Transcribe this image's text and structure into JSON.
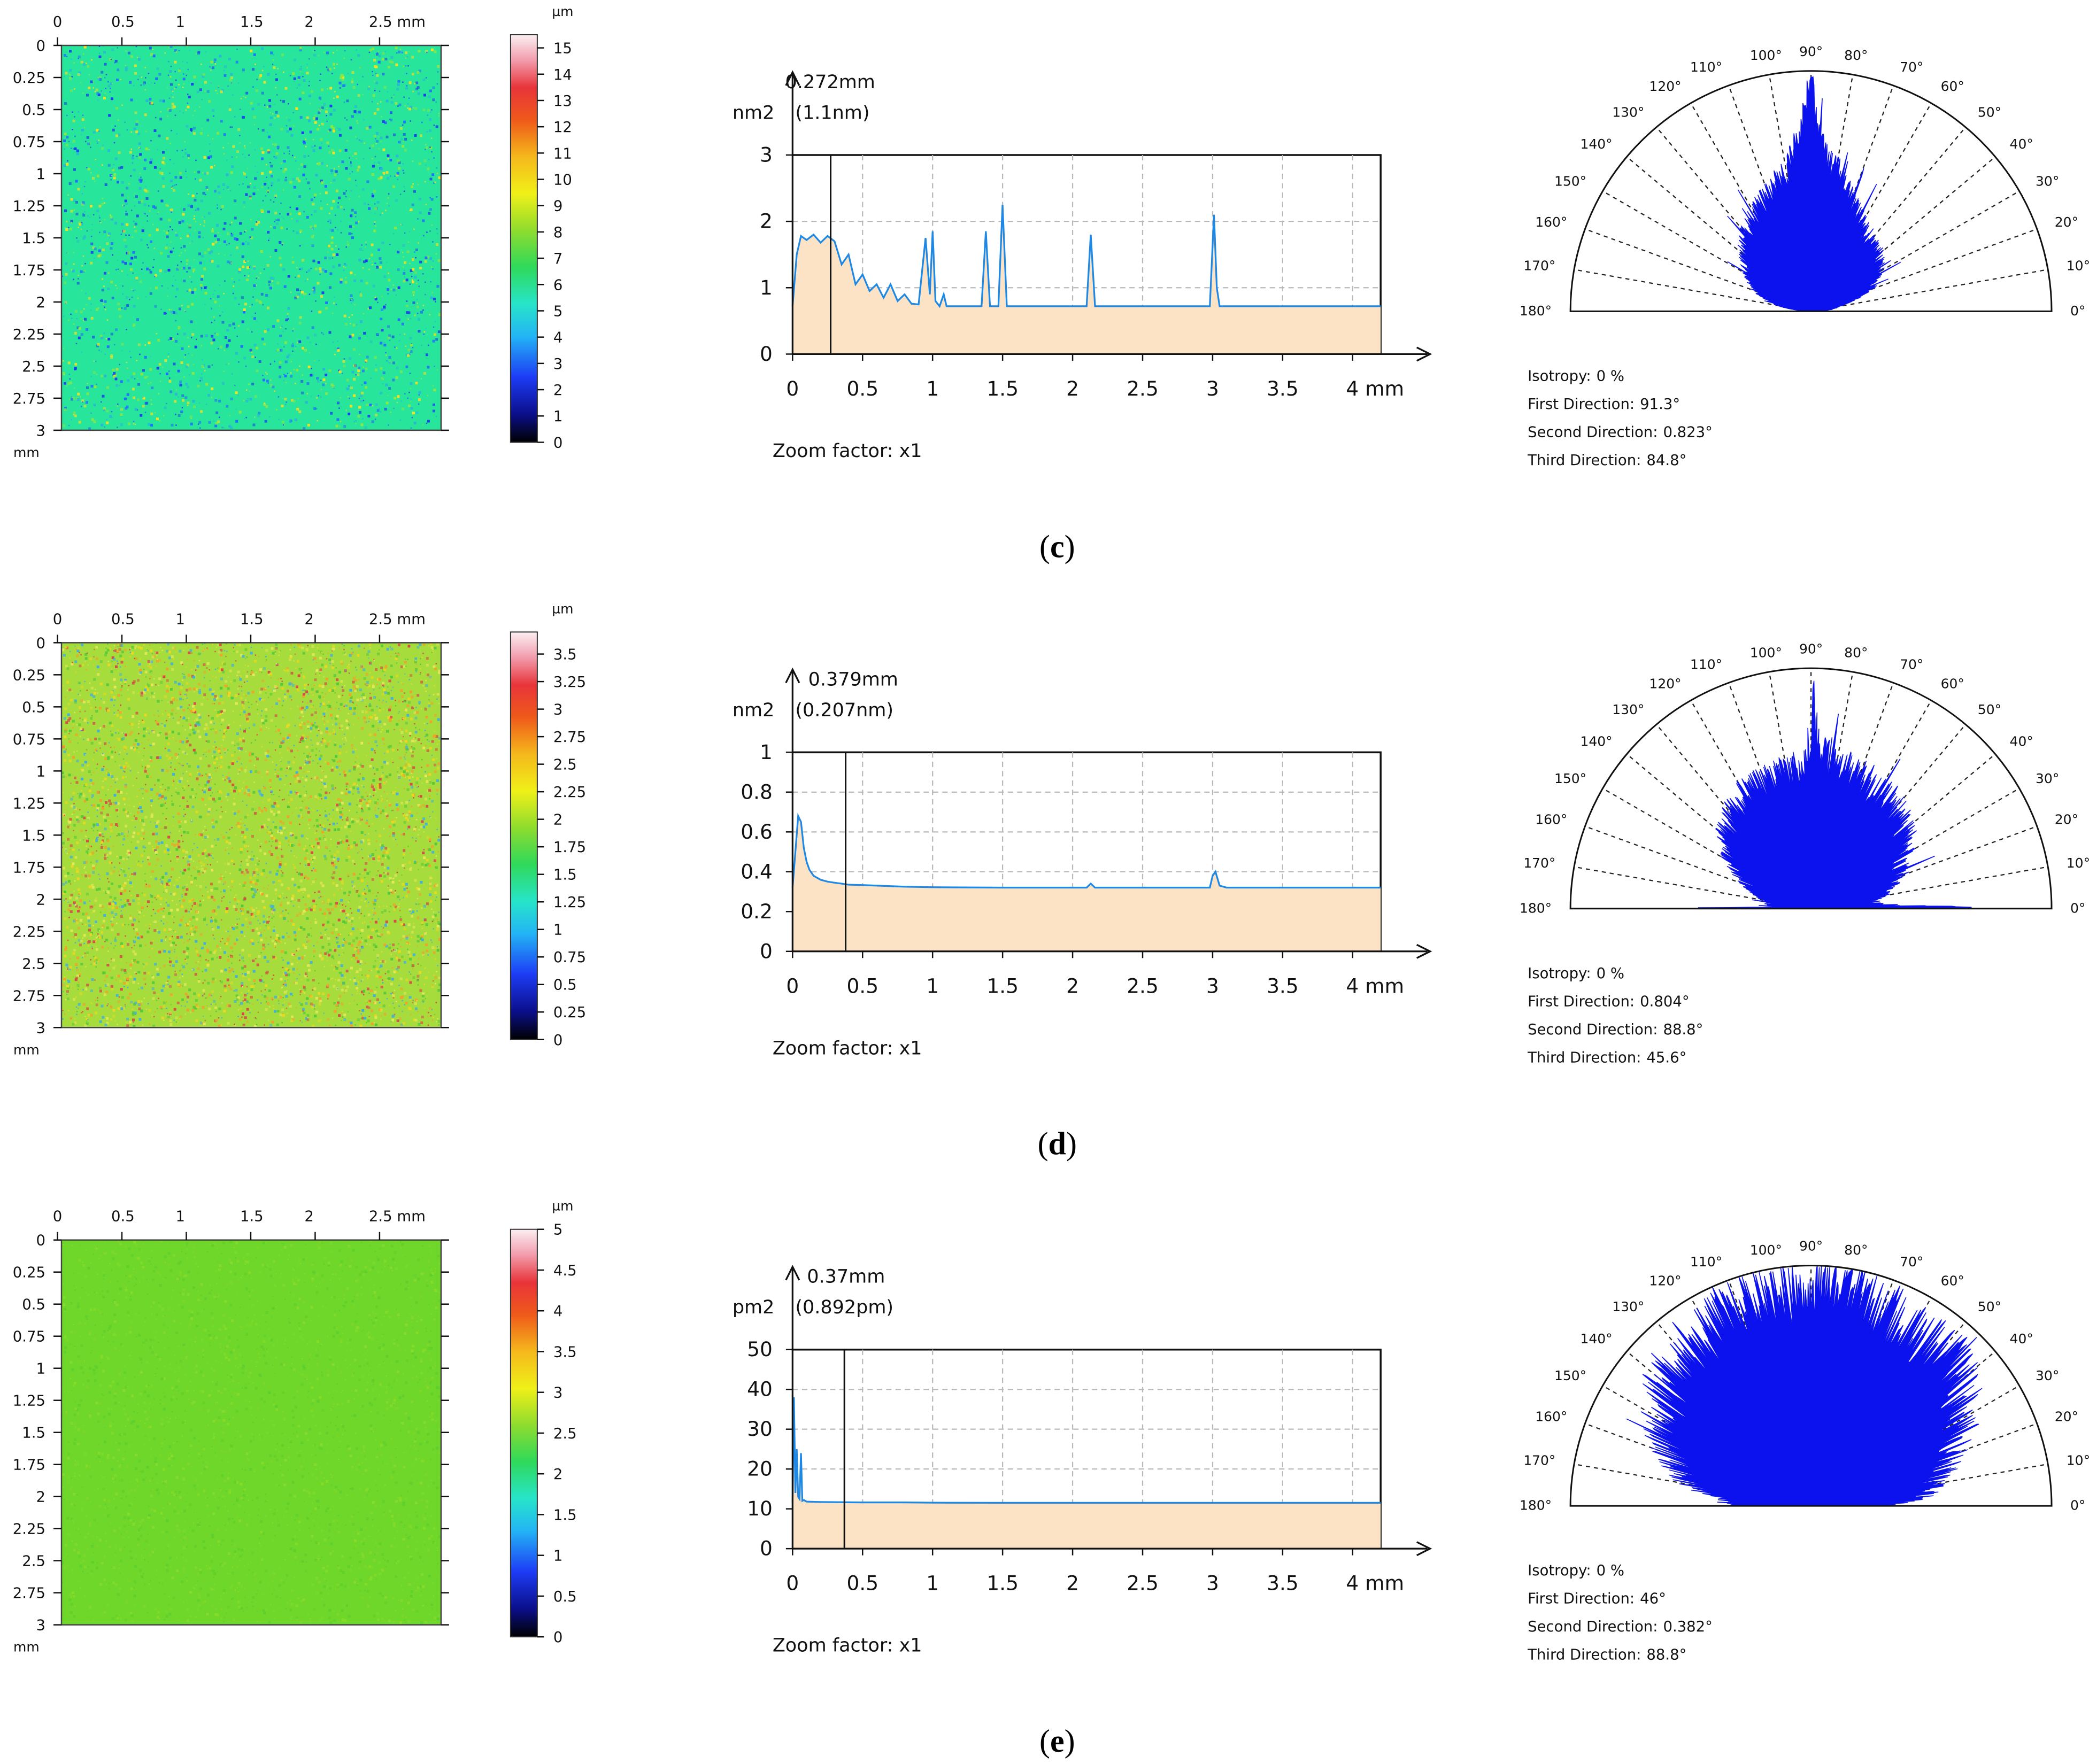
{
  "panels": [
    {
      "label": "c",
      "heightmap": {
        "x_ticks": [
          "0",
          "0.5",
          "1",
          "1.5",
          "2",
          "2.5 mm"
        ],
        "y_ticks": [
          "0",
          "0.25",
          "0.5",
          "0.75",
          "1",
          "1.25",
          "1.5",
          "1.75",
          "2",
          "2.25",
          "2.5",
          "2.75",
          "3"
        ],
        "y_unit": "mm",
        "base_color": "#27e59a",
        "speckle_colors": [
          "#1f6cff",
          "#1a3cf0",
          "#f5e020",
          "#8ee840",
          "#26b8d8"
        ],
        "colorbar": {
          "unit": "µm",
          "max": 15.5,
          "labels": [
            "15",
            "14",
            "13",
            "12",
            "11",
            "10",
            "9",
            "8",
            "7",
            "6",
            "5",
            "4",
            "3",
            "2",
            "1",
            "0"
          ]
        }
      },
      "psd": {
        "cursor_value": "0.272mm",
        "cursor_sub": "(1.1nm)",
        "y_unit": "nm2",
        "zoom_text": "Zoom factor: x1",
        "chart_data": {
          "type": "area",
          "x_unit": "mm",
          "xlim": [
            0,
            4.2
          ],
          "ylim": [
            0,
            3
          ],
          "x_ticks": [
            "0",
            "0.5",
            "1",
            "1.5",
            "2",
            "2.5",
            "3",
            "3.5",
            "4 mm"
          ],
          "y_ticks": [
            "3",
            "2",
            "1",
            "0"
          ],
          "y_tick_values": [
            3,
            2,
            1,
            0
          ],
          "cursor_x": 0.272,
          "baseline": 0.72,
          "series": [
            {
              "name": "PSD",
              "x": [
                0,
                0.03,
                0.06,
                0.1,
                0.15,
                0.2,
                0.25,
                0.3,
                0.35,
                0.4,
                0.45,
                0.5,
                0.55,
                0.6,
                0.65,
                0.7,
                0.75,
                0.8,
                0.85,
                0.9,
                0.95,
                0.98,
                1.0,
                1.02,
                1.05,
                1.08,
                1.1,
                1.2,
                1.35,
                1.38,
                1.41,
                1.47,
                1.5,
                1.53,
                1.56,
                2.1,
                2.13,
                2.16,
                2.19,
                2.98,
                3.01,
                3.03,
                3.05,
                3.08,
                4.2
              ],
              "y": [
                0.72,
                1.5,
                1.78,
                1.72,
                1.8,
                1.68,
                1.78,
                1.7,
                1.35,
                1.5,
                1.05,
                1.2,
                0.95,
                1.05,
                0.85,
                1.05,
                0.8,
                0.9,
                0.76,
                0.75,
                1.75,
                0.9,
                1.85,
                0.8,
                0.72,
                0.9,
                0.72,
                0.72,
                0.72,
                1.85,
                0.72,
                0.72,
                2.25,
                0.72,
                0.72,
                0.72,
                1.8,
                0.72,
                0.72,
                0.72,
                2.1,
                1.0,
                0.72,
                0.72,
                0.72
              ]
            }
          ]
        }
      },
      "polar": {
        "angle_labels": [
          "0°",
          "10°",
          "20°",
          "30°",
          "40°",
          "50°",
          "60°",
          "70°",
          "80°",
          "90°",
          "100°",
          "110°",
          "120°",
          "130°",
          "140°",
          "150°",
          "160°",
          "170°",
          "180°"
        ],
        "stats": [
          {
            "label": "Isotropy:",
            "value": "0 %"
          },
          {
            "label": "First Direction:",
            "value": "91.3°"
          },
          {
            "label": "Second Direction:",
            "value": "0.823°"
          },
          {
            "label": "Third Direction:",
            "value": "84.8°"
          }
        ],
        "chart_data": {
          "type": "polar-area",
          "angle_range": [
            0,
            180
          ],
          "radius_max": 1,
          "profile": [
            [
              0,
              0.02
            ],
            [
              5,
              0.08
            ],
            [
              10,
              0.12
            ],
            [
              20,
              0.26
            ],
            [
              30,
              0.32
            ],
            [
              40,
              0.36
            ],
            [
              50,
              0.38
            ],
            [
              60,
              0.42
            ],
            [
              70,
              0.48
            ],
            [
              80,
              0.6
            ],
            [
              85,
              0.65
            ],
            [
              88,
              0.78
            ],
            [
              89.5,
              0.9
            ],
            [
              90,
              1.0
            ],
            [
              91,
              0.9
            ],
            [
              93,
              0.75
            ],
            [
              100,
              0.58
            ],
            [
              110,
              0.52
            ],
            [
              120,
              0.46
            ],
            [
              130,
              0.42
            ],
            [
              140,
              0.36
            ],
            [
              150,
              0.3
            ],
            [
              160,
              0.24
            ],
            [
              170,
              0.14
            ],
            [
              175,
              0.06
            ],
            [
              180,
              0.02
            ]
          ],
          "noise": 0.1,
          "seed": 11
        }
      }
    },
    {
      "label": "d",
      "heightmap": {
        "x_ticks": [
          "0",
          "0.5",
          "1",
          "1.5",
          "2",
          "2.5 mm"
        ],
        "y_ticks": [
          "0",
          "0.25",
          "0.5",
          "0.75",
          "1",
          "1.25",
          "1.5",
          "1.75",
          "2",
          "2.25",
          "2.5",
          "2.75",
          "3"
        ],
        "y_unit": "mm",
        "base_color": "#a6dc3c",
        "speckle_colors": [
          "#ecd91e",
          "#52c83a",
          "#f0a32a",
          "#3faee0",
          "#e8e85a",
          "#d84848"
        ],
        "colorbar": {
          "unit": "µm",
          "max": 3.7,
          "labels": [
            "3.5",
            "3.25",
            "3",
            "2.75",
            "2.5",
            "2.25",
            "2",
            "1.75",
            "1.5",
            "1.25",
            "1",
            "0.75",
            "0.5",
            "0.25",
            "0"
          ]
        }
      },
      "psd": {
        "cursor_value": "0.379mm",
        "cursor_sub": "(0.207nm)",
        "y_unit": "nm2",
        "zoom_text": "Zoom factor: x1",
        "chart_data": {
          "type": "area",
          "x_unit": "mm",
          "xlim": [
            0,
            4.2
          ],
          "ylim": [
            0,
            1
          ],
          "x_ticks": [
            "0",
            "0.5",
            "1",
            "1.5",
            "2",
            "2.5",
            "3",
            "3.5",
            "4 mm"
          ],
          "y_ticks": [
            "1",
            "0.8",
            "0.6",
            "0.4",
            "0.2",
            "0"
          ],
          "y_tick_values": [
            1,
            0.8,
            0.6,
            0.4,
            0.2,
            0
          ],
          "cursor_x": 0.379,
          "baseline": 0.32,
          "series": [
            {
              "name": "PSD",
              "x": [
                0,
                0.02,
                0.04,
                0.06,
                0.08,
                0.1,
                0.12,
                0.15,
                0.2,
                0.25,
                0.3,
                0.35,
                0.4,
                0.5,
                0.6,
                0.8,
                1.0,
                1.5,
                2.1,
                2.13,
                2.16,
                2.98,
                3.0,
                3.02,
                3.05,
                3.1,
                4.2
              ],
              "y": [
                0.32,
                0.5,
                0.68,
                0.65,
                0.52,
                0.45,
                0.41,
                0.38,
                0.36,
                0.35,
                0.345,
                0.34,
                0.335,
                0.333,
                0.33,
                0.325,
                0.322,
                0.32,
                0.32,
                0.34,
                0.32,
                0.32,
                0.38,
                0.4,
                0.33,
                0.32,
                0.32
              ]
            }
          ]
        }
      },
      "polar": {
        "angle_labels": [
          "0°",
          "10°",
          "20°",
          "30°",
          "40°",
          "50°",
          "60°",
          "70°",
          "80°",
          "90°",
          "100°",
          "110°",
          "120°",
          "130°",
          "140°",
          "150°",
          "160°",
          "170°",
          "180°"
        ],
        "stats": [
          {
            "label": "Isotropy:",
            "value": "0 %"
          },
          {
            "label": "First Direction:",
            "value": "0.804°"
          },
          {
            "label": "Second Direction:",
            "value": "88.8°"
          },
          {
            "label": "Third Direction:",
            "value": "45.6°"
          }
        ],
        "chart_data": {
          "type": "polar-area",
          "angle_range": [
            0,
            180
          ],
          "radius_max": 1,
          "profile": [
            [
              0,
              0.7
            ],
            [
              2,
              0.35
            ],
            [
              5,
              0.25
            ],
            [
              10,
              0.28
            ],
            [
              20,
              0.38
            ],
            [
              30,
              0.44
            ],
            [
              40,
              0.5
            ],
            [
              50,
              0.54
            ],
            [
              60,
              0.56
            ],
            [
              70,
              0.58
            ],
            [
              80,
              0.6
            ],
            [
              88,
              0.68
            ],
            [
              89.5,
              0.9
            ],
            [
              90,
              0.72
            ],
            [
              92,
              0.6
            ],
            [
              100,
              0.58
            ],
            [
              110,
              0.56
            ],
            [
              120,
              0.54
            ],
            [
              130,
              0.5
            ],
            [
              140,
              0.46
            ],
            [
              150,
              0.38
            ],
            [
              160,
              0.28
            ],
            [
              170,
              0.2
            ],
            [
              178,
              0.15
            ],
            [
              180,
              0.5
            ]
          ],
          "noise": 0.14,
          "seed": 23
        }
      }
    },
    {
      "label": "e",
      "heightmap": {
        "x_ticks": [
          "0",
          "0.5",
          "1",
          "1.5",
          "2",
          "2.5 mm"
        ],
        "y_ticks": [
          "0",
          "0.25",
          "0.5",
          "0.75",
          "1",
          "1.25",
          "1.5",
          "1.75",
          "2",
          "2.25",
          "2.5",
          "2.75",
          "3"
        ],
        "y_unit": "mm",
        "base_color": "#6fd62a",
        "speckle_colors": [
          "#86dc2a",
          "#5ecf2c",
          "#7ad82a"
        ],
        "colorbar": {
          "unit": "µm",
          "max": 5,
          "labels": [
            "5",
            "4.5",
            "4",
            "3.5",
            "3",
            "2.5",
            "2",
            "1.5",
            "1",
            "0.5",
            "0"
          ]
        }
      },
      "psd": {
        "cursor_value": "0.37mm",
        "cursor_sub": "(0.892pm)",
        "y_unit": "pm2",
        "zoom_text": "Zoom factor: x1",
        "chart_data": {
          "type": "area",
          "x_unit": "mm",
          "xlim": [
            0,
            4.2
          ],
          "ylim": [
            0,
            50
          ],
          "x_ticks": [
            "0",
            "0.5",
            "1",
            "1.5",
            "2",
            "2.5",
            "3",
            "3.5",
            "4 mm"
          ],
          "y_ticks": [
            "50",
            "40",
            "30",
            "20",
            "10",
            "0"
          ],
          "y_tick_values": [
            50,
            40,
            30,
            20,
            10,
            0
          ],
          "cursor_x": 0.37,
          "baseline": 11.5,
          "series": [
            {
              "name": "PSD",
              "x": [
                0,
                0.01,
                0.02,
                0.03,
                0.04,
                0.05,
                0.06,
                0.07,
                0.08,
                0.1,
                0.2,
                0.5,
                0.8,
                1.0,
                1.5,
                2.0,
                3.0,
                4.2
              ],
              "y": [
                11.5,
                38,
                14,
                25,
                13,
                12.5,
                24,
                12,
                12.2,
                11.8,
                11.7,
                11.6,
                11.6,
                11.55,
                11.5,
                11.5,
                11.5,
                11.5
              ]
            }
          ]
        }
      },
      "polar": {
        "angle_labels": [
          "0°",
          "10°",
          "20°",
          "30°",
          "40°",
          "50°",
          "60°",
          "70°",
          "80°",
          "90°",
          "100°",
          "110°",
          "120°",
          "130°",
          "140°",
          "150°",
          "160°",
          "170°",
          "180°"
        ],
        "stats": [
          {
            "label": "Isotropy:",
            "value": "0 %"
          },
          {
            "label": "First Direction:",
            "value": "46°"
          },
          {
            "label": "Second Direction:",
            "value": "0.382°"
          },
          {
            "label": "Third Direction:",
            "value": "88.8°"
          }
        ],
        "chart_data": {
          "type": "polar-area",
          "angle_range": [
            0,
            180
          ],
          "radius_max": 1,
          "profile": [
            [
              0,
              0.3
            ],
            [
              5,
              0.45
            ],
            [
              10,
              0.5
            ],
            [
              20,
              0.6
            ],
            [
              30,
              0.72
            ],
            [
              40,
              0.78
            ],
            [
              46,
              0.86
            ],
            [
              50,
              0.82
            ],
            [
              60,
              0.84
            ],
            [
              70,
              0.86
            ],
            [
              80,
              0.88
            ],
            [
              90,
              0.9
            ],
            [
              100,
              0.88
            ],
            [
              110,
              0.86
            ],
            [
              120,
              0.84
            ],
            [
              130,
              0.82
            ],
            [
              140,
              0.78
            ],
            [
              150,
              0.72
            ],
            [
              160,
              0.62
            ],
            [
              170,
              0.5
            ],
            [
              175,
              0.4
            ],
            [
              180,
              0.3
            ]
          ],
          "noise": 0.16,
          "seed": 37
        }
      }
    }
  ]
}
